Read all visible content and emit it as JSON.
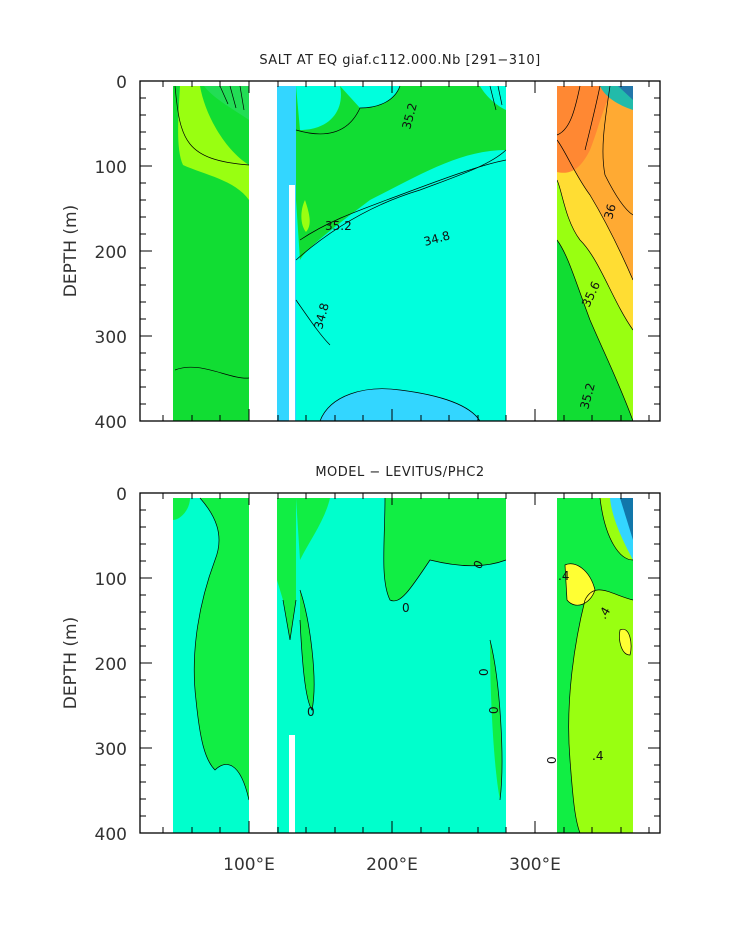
{
  "chart_data": [
    {
      "type": "heatmap",
      "title": "SALT AT EQ giaf.c112.000.Nb [291−310]",
      "xlabel": "",
      "ylabel": "DEPTH (m)",
      "xlim": [
        30,
        390
      ],
      "ylim": [
        400,
        0
      ],
      "yticks": [
        "0",
        "100",
        "200",
        "300",
        "400"
      ],
      "xticks": [
        "100°E",
        "200°E",
        "300°E"
      ],
      "land_bands_lon": [
        [
          98,
          118
        ],
        [
          278,
          315
        ],
        [
          368,
          390
        ],
        [
          30,
          44
        ]
      ],
      "contour_labels": [
        {
          "text": "35.2",
          "lon": 148,
          "depth": 170
        },
        {
          "text": "34.8",
          "lon": 235,
          "depth": 190
        },
        {
          "text": "35.2",
          "lon": 205,
          "depth": 40
        },
        {
          "text": "34.8",
          "lon": 150,
          "depth": 280
        },
        {
          "text": "36",
          "lon": 340,
          "depth": 150
        },
        {
          "text": "35.6",
          "lon": 330,
          "depth": 255
        },
        {
          "text": "35.2",
          "lon": 330,
          "depth": 355
        }
      ],
      "colors": {
        "low": "#33d6ff",
        "mid_low": "#00ffdd",
        "mid": "#11dd33",
        "mid_high": "#99ff11",
        "high": "#ffff00",
        "orange": "#ffaa33",
        "dark_orange": "#ff8833"
      }
    },
    {
      "type": "heatmap",
      "title": "MODEL − LEVITUS/PHC2",
      "xlabel": "",
      "ylabel": "DEPTH (m)",
      "xlim": [
        30,
        390
      ],
      "ylim": [
        400,
        0
      ],
      "yticks": [
        "0",
        "100",
        "200",
        "300",
        "400"
      ],
      "xticks": [
        "100°E",
        "200°E",
        "300°E"
      ],
      "contour_labels": [
        {
          "text": "0",
          "lon": 245,
          "depth": 90
        },
        {
          "text": "0",
          "lon": 192,
          "depth": 130
        },
        {
          "text": "0",
          "lon": 275,
          "depth": 215
        },
        {
          "text": "0",
          "lon": 150,
          "depth": 260
        },
        {
          "text": "0",
          "lon": 298,
          "depth": 260
        },
        {
          "text": "0",
          "lon": 303,
          "depth": 315
        },
        {
          "text": ".4",
          "lon": 320,
          "depth": 90
        },
        {
          "text": ".4",
          "lon": 342,
          "depth": 140
        },
        {
          "text": ".4",
          "lon": 338,
          "depth": 310
        }
      ],
      "colors": {
        "zero": "#00ffcc",
        "pos_small": "#11ee44",
        "pos": "#99ff11",
        "pos_high": "#ffff33",
        "neg": "#33d6ff"
      }
    }
  ]
}
